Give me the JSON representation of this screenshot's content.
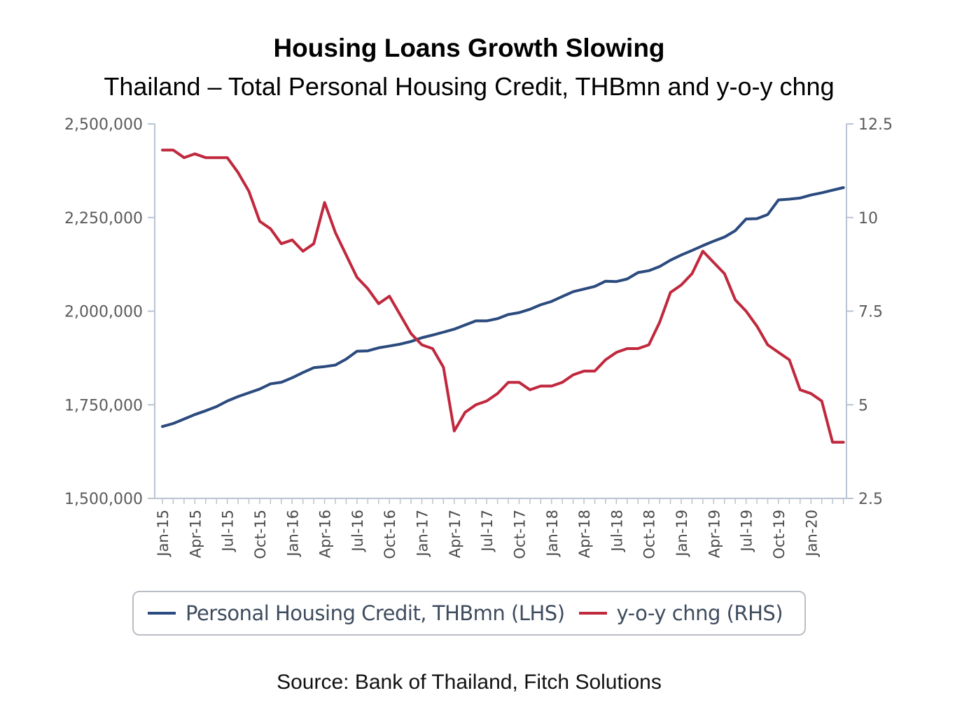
{
  "title": "Housing Loans Growth Slowing",
  "subtitle": "Thailand – Total Personal Housing Credit, THBmn and y-o-y chng",
  "source": "Source: Bank of Thailand, Fitch Solutions",
  "colors": {
    "credit": "#2b4a7e",
    "yoy": "#c0283d",
    "axis": "#b9c4d0"
  },
  "chart_data": {
    "type": "line",
    "x": [
      "Jan-15",
      "Feb-15",
      "Mar-15",
      "Apr-15",
      "May-15",
      "Jun-15",
      "Jul-15",
      "Aug-15",
      "Sep-15",
      "Oct-15",
      "Nov-15",
      "Dec-15",
      "Jan-16",
      "Feb-16",
      "Mar-16",
      "Apr-16",
      "May-16",
      "Jun-16",
      "Jul-16",
      "Aug-16",
      "Sep-16",
      "Oct-16",
      "Nov-16",
      "Dec-16",
      "Jan-17",
      "Feb-17",
      "Mar-17",
      "Apr-17",
      "May-17",
      "Jun-17",
      "Jul-17",
      "Aug-17",
      "Sep-17",
      "Oct-17",
      "Nov-17",
      "Dec-17",
      "Jan-18",
      "Feb-18",
      "Mar-18",
      "Apr-18",
      "May-18",
      "Jun-18",
      "Jul-18",
      "Aug-18",
      "Sep-18",
      "Oct-18",
      "Nov-18",
      "Dec-18",
      "Jan-19",
      "Feb-19",
      "Mar-19",
      "Apr-19",
      "May-19",
      "Jun-19",
      "Jul-19",
      "Aug-19",
      "Sep-19",
      "Oct-19",
      "Nov-19",
      "Dec-19",
      "Jan-20",
      "Feb-20",
      "Mar-20",
      "Apr-20"
    ],
    "x_tick_labels": [
      "Jan-15",
      "Apr-15",
      "Jul-15",
      "Oct-15",
      "Jan-16",
      "Apr-16",
      "Jul-16",
      "Oct-16",
      "Jan-17",
      "Apr-17",
      "Jul-17",
      "Oct-17",
      "Jan-18",
      "Apr-18",
      "Jul-18",
      "Oct-18",
      "Jan-19",
      "Apr-19",
      "Jul-19",
      "Oct-19",
      "Jan-20"
    ],
    "y_left": {
      "ylim": [
        1500000,
        2500000
      ],
      "ticks": [
        "1,500,000",
        "1,750,000",
        "2,000,000",
        "2,250,000",
        "2,500,000"
      ],
      "tick_values": [
        1500000,
        1750000,
        2000000,
        2250000,
        2500000
      ]
    },
    "y_right": {
      "ylim": [
        2.5,
        12.5
      ],
      "ticks": [
        "2.5",
        "5",
        "7.5",
        "10",
        "12.5"
      ],
      "tick_values": [
        2.5,
        5,
        7.5,
        10,
        12.5
      ]
    },
    "series": [
      {
        "name": "Personal Housing Credit, THBmn (LHS)",
        "axis": "left",
        "values": [
          1692000,
          1700000,
          1712000,
          1724000,
          1734000,
          1745000,
          1760000,
          1772000,
          1782000,
          1792000,
          1806000,
          1810000,
          1822000,
          1836000,
          1849000,
          1852000,
          1856000,
          1872000,
          1893000,
          1894000,
          1902000,
          1907000,
          1912000,
          1919000,
          1929000,
          1936000,
          1944000,
          1952000,
          1963000,
          1974000,
          1974000,
          1980000,
          1991000,
          1996000,
          2005000,
          2017000,
          2026000,
          2039000,
          2052000,
          2059000,
          2066000,
          2080000,
          2079000,
          2086000,
          2103000,
          2108000,
          2119000,
          2136000,
          2150000,
          2162000,
          2175000,
          2187000,
          2198000,
          2215000,
          2246000,
          2247000,
          2258000,
          2297000,
          2299000,
          2302000,
          2310000,
          2316000,
          2323000,
          2330000
        ]
      },
      {
        "name": "y-o-y chng (RHS)",
        "axis": "right",
        "values": [
          11.8,
          11.8,
          11.6,
          11.7,
          11.6,
          11.6,
          11.6,
          11.2,
          10.7,
          9.9,
          9.7,
          9.3,
          9.4,
          9.1,
          9.3,
          10.4,
          9.6,
          9.0,
          8.4,
          8.1,
          7.7,
          7.9,
          7.4,
          6.9,
          6.6,
          6.5,
          6.0,
          4.3,
          4.8,
          5.0,
          5.1,
          5.3,
          5.6,
          5.6,
          5.4,
          5.5,
          5.5,
          5.6,
          5.8,
          5.9,
          5.9,
          6.2,
          6.4,
          6.5,
          6.5,
          6.6,
          7.2,
          8.0,
          8.2,
          8.5,
          9.1,
          8.8,
          8.5,
          7.8,
          7.5,
          7.1,
          6.6,
          6.4,
          6.2,
          5.4,
          5.3,
          5.1,
          4.0,
          4.0
        ]
      }
    ],
    "legend": "bottom",
    "grid": false
  }
}
